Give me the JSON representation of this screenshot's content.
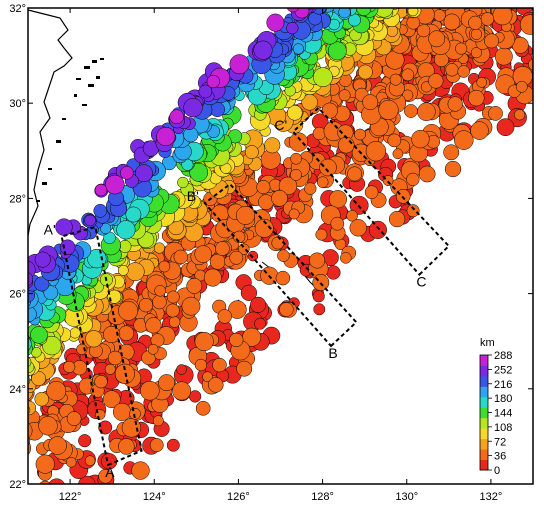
{
  "map": {
    "lon_range": [
      121,
      133
    ],
    "lat_range": [
      22,
      32
    ],
    "x_ticks": [
      {
        "value": 122,
        "label": "122°"
      },
      {
        "value": 124,
        "label": "124°"
      },
      {
        "value": 126,
        "label": "126°"
      },
      {
        "value": 128,
        "label": "128°"
      },
      {
        "value": 130,
        "label": "130°"
      },
      {
        "value": 132,
        "label": "132°"
      }
    ],
    "y_ticks": [
      {
        "value": 22,
        "label": "22°"
      },
      {
        "value": 24,
        "label": "24°"
      },
      {
        "value": 26,
        "label": "26°"
      },
      {
        "value": 28,
        "label": "28°"
      },
      {
        "value": 30,
        "label": "30°"
      },
      {
        "value": 32,
        "label": "32°"
      }
    ]
  },
  "profiles": [
    {
      "start_label": "A",
      "end_label": "A'",
      "box": [
        [
          122.9,
          22.4
        ],
        [
          123.7,
          22.7
        ],
        [
          122.6,
          27.4
        ],
        [
          121.8,
          27.2
        ]
      ]
    },
    {
      "start_label": "B",
      "end_label": "B'",
      "box": [
        [
          128.2,
          24.9
        ],
        [
          128.8,
          25.4
        ],
        [
          125.8,
          28.3
        ],
        [
          125.2,
          27.9
        ]
      ]
    },
    {
      "start_label": "C",
      "end_label": "C'",
      "box": [
        [
          130.3,
          26.4
        ],
        [
          131.0,
          27.0
        ],
        [
          127.9,
          29.9
        ],
        [
          127.3,
          29.4
        ]
      ]
    }
  ],
  "legend": {
    "unit": "km",
    "ticks": [
      288,
      252,
      216,
      180,
      144,
      108,
      72,
      36,
      0
    ],
    "colors": [
      "#e8281e",
      "#f26a1a",
      "#f6a21e",
      "#f6da2a",
      "#b8e61e",
      "#3ede2e",
      "#28d8c8",
      "#2da6ee",
      "#3a56e6",
      "#7a2ae2",
      "#c820d4"
    ]
  },
  "earthquakes": {
    "description_depth_range_km": [
      0,
      288
    ]
  }
}
